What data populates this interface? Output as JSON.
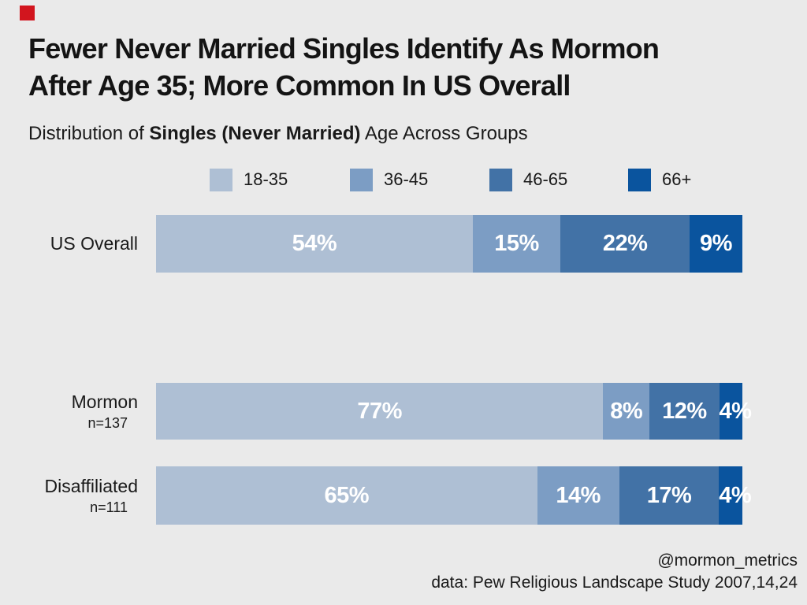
{
  "colors": {
    "background": "#eaeaea",
    "accent_red": "#d2151e",
    "text": "#1a1a1a",
    "value_label": "#ffffff"
  },
  "title": {
    "line1": "Fewer Never Married Singles Identify As Mormon",
    "line2": "After Age 35; More Common In US Overall"
  },
  "subtitle": {
    "prefix": "Distribution of ",
    "emphasis": "Singles (Never Married)",
    "suffix": " Age Across Groups"
  },
  "chart_data": {
    "type": "bar",
    "orientation": "horizontal_stacked",
    "unit": "%",
    "xlim": [
      0,
      100
    ],
    "legend_position": "top",
    "value_labels": "inside_white_bold",
    "categories": [
      "18-35",
      "36-45",
      "46-65",
      "66+"
    ],
    "category_colors": [
      "#aebfd4",
      "#7c9dc4",
      "#4272a6",
      "#0a549e"
    ],
    "rows": [
      {
        "label": "US Overall",
        "sublabel": "",
        "values": [
          54,
          15,
          22,
          9
        ]
      },
      {
        "label": "Mormon",
        "sublabel": "n=137",
        "values": [
          77,
          8,
          12,
          4
        ]
      },
      {
        "label": "Disaffiliated",
        "sublabel": "n=111",
        "values": [
          65,
          14,
          17,
          4
        ]
      }
    ]
  },
  "footer": {
    "handle": "@mormon_metrics",
    "source": "data: Pew Religious Landscape Study 2007,14,24"
  }
}
